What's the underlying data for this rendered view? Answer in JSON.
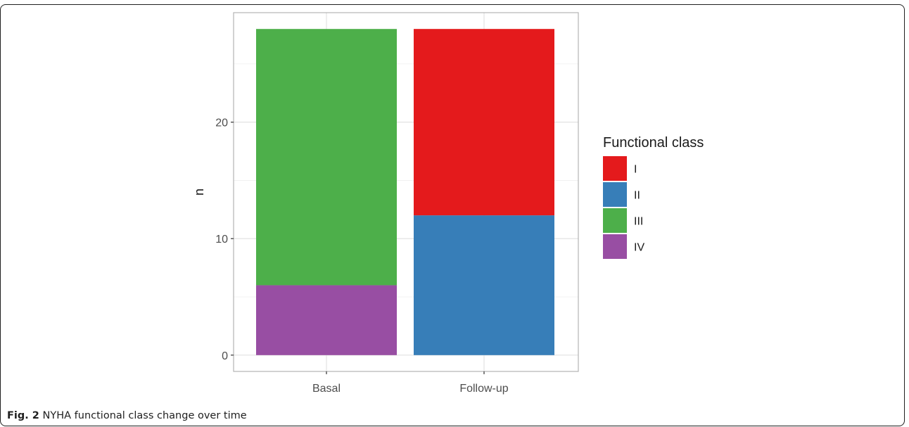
{
  "chart_data": {
    "type": "bar",
    "stacked": true,
    "categories": [
      "Basal",
      "Follow-up"
    ],
    "series": [
      {
        "name": "I",
        "color": "#e41a1c",
        "values": [
          0,
          16
        ]
      },
      {
        "name": "II",
        "color": "#377eb8",
        "values": [
          0,
          12
        ]
      },
      {
        "name": "III",
        "color": "#4daf4a",
        "values": [
          22,
          0
        ]
      },
      {
        "name": "IV",
        "color": "#984ea3",
        "values": [
          6,
          0
        ]
      }
    ],
    "stack_order_bottom_to_top": [
      "IV",
      "III",
      "II",
      "I"
    ],
    "title": "",
    "xlabel": "",
    "ylabel": "n",
    "ylim": [
      0,
      28
    ],
    "yticks": [
      "0",
      "10",
      "20"
    ],
    "grid": true,
    "legend_title": "Functional class",
    "legend_position": "right"
  },
  "caption": {
    "label": "Fig. 2",
    "text": "NYHA functional class change over time"
  }
}
